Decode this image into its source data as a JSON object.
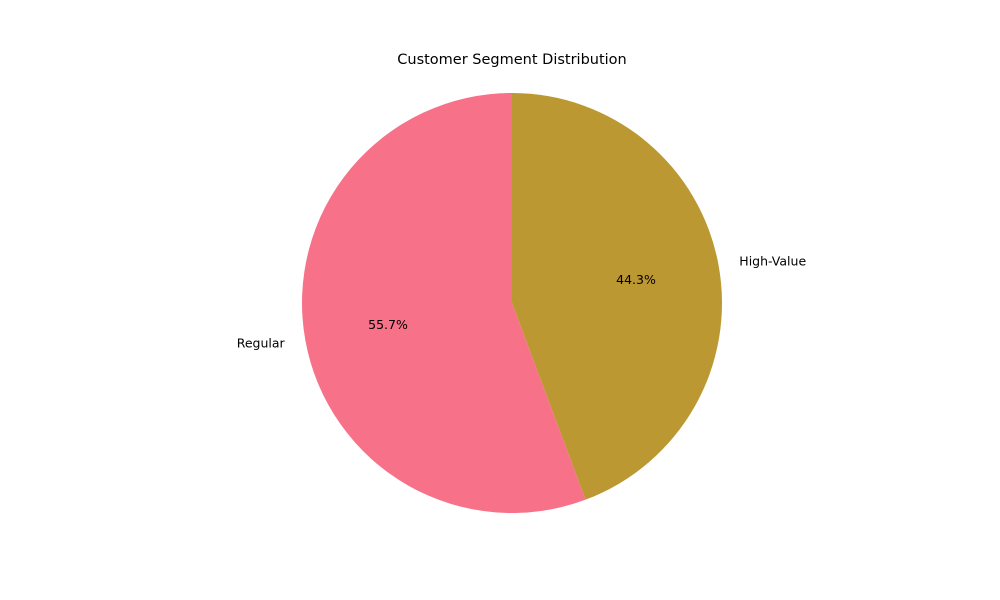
{
  "chart_data": {
    "type": "pie",
    "title": "Customer Segment Distribution",
    "start_angle_deg": 90,
    "direction": "counterclockwise",
    "slices": [
      {
        "label": "Regular",
        "value": 55.7,
        "pct_label": "55.7%",
        "color": "#f77189"
      },
      {
        "label": "High-Value",
        "value": 44.3,
        "pct_label": "44.3%",
        "color": "#bb9832"
      }
    ]
  }
}
